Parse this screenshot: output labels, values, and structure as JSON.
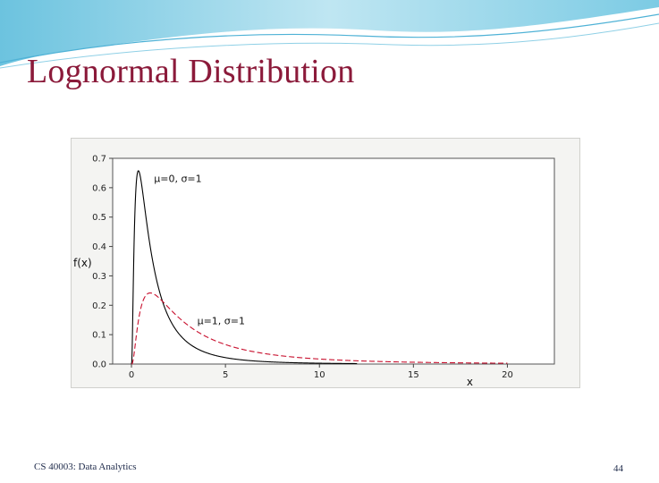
{
  "slide": {
    "title": "Lognormal Distribution",
    "footer": "CS 40003: Data Analytics",
    "page_number": "44"
  },
  "colors": {
    "title": "#8b1a3a",
    "banner_light": "#bfe6f2",
    "banner_dark": "#6cc3df",
    "series_solid": "#000000",
    "series_dashed": "#c8102e"
  },
  "chart_data": {
    "type": "line",
    "xlabel": "x",
    "ylabel": "f(x)",
    "xlim": [
      -1,
      22.5
    ],
    "ylim": [
      0,
      0.7
    ],
    "x_ticks": [
      "0",
      "5",
      "10",
      "15",
      "20"
    ],
    "x_tick_values": [
      0,
      5,
      10,
      15,
      20
    ],
    "y_ticks": [
      "0.0",
      "0.1",
      "0.2",
      "0.3",
      "0.4",
      "0.5",
      "0.6",
      "0.7"
    ],
    "y_tick_values": [
      0,
      0.1,
      0.2,
      0.3,
      0.4,
      0.5,
      0.6,
      0.7
    ],
    "grid": false,
    "series": [
      {
        "label": "μ=0, σ=1",
        "mu": 0,
        "sigma": 1,
        "style": "solid",
        "color": "#000000",
        "label_at": [
          1.2,
          0.62
        ],
        "x_max": 12,
        "x": [
          0,
          0.1,
          0.2,
          0.3,
          0.4,
          0.5,
          0.6,
          0.8,
          1,
          1.5,
          2,
          3,
          4,
          5,
          6,
          8,
          10,
          12
        ],
        "y": [
          0,
          0.282,
          0.547,
          0.644,
          0.655,
          0.627,
          0.583,
          0.49,
          0.399,
          0.245,
          0.157,
          0.073,
          0.038,
          0.022,
          0.014,
          0.006,
          0.003,
          0.0015
        ]
      },
      {
        "label": "μ=1, σ=1",
        "mu": 1,
        "sigma": 1,
        "style": "dashed",
        "color": "#c8102e",
        "label_at": [
          3.5,
          0.135
        ],
        "x_max": 20,
        "x": [
          0,
          0.2,
          0.5,
          1,
          1.5,
          2,
          3,
          4,
          5,
          6,
          8,
          10,
          12,
          15,
          18,
          20
        ],
        "y": [
          0,
          0.035,
          0.147,
          0.242,
          0.229,
          0.19,
          0.128,
          0.087,
          0.061,
          0.044,
          0.025,
          0.015,
          0.01,
          0.005,
          0.003,
          0.002
        ]
      }
    ]
  }
}
